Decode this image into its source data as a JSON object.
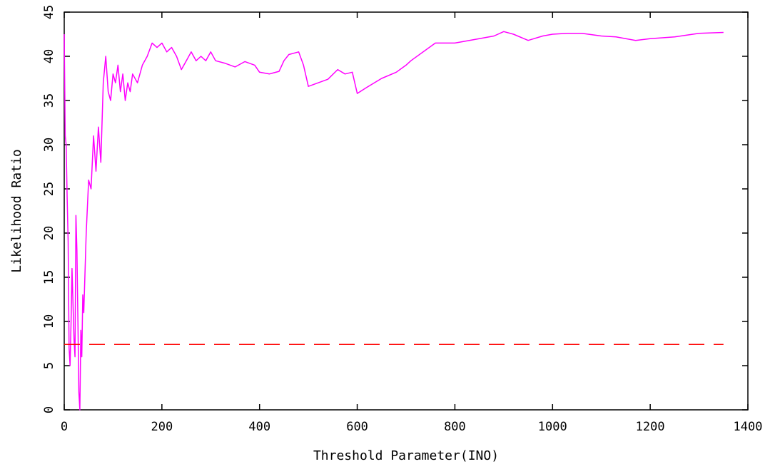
{
  "chart_data": {
    "type": "line",
    "title": "",
    "xlabel": "Threshold Parameter(INO)",
    "ylabel": "Likelihood Ratio",
    "xlim": [
      0,
      1400
    ],
    "ylim": [
      0,
      45
    ],
    "xticks": [
      0,
      200,
      400,
      600,
      800,
      1000,
      1200,
      1400
    ],
    "yticks": [
      0,
      5,
      10,
      15,
      20,
      25,
      30,
      35,
      40,
      45
    ],
    "grid": false,
    "legend": "none",
    "series": [
      {
        "color": "#ff00ff",
        "style": "solid",
        "x": [
          0,
          2,
          4,
          6,
          8,
          10,
          12,
          14,
          16,
          18,
          20,
          22,
          24,
          26,
          28,
          30,
          32,
          34,
          36,
          38,
          40,
          45,
          50,
          55,
          60,
          65,
          70,
          75,
          80,
          85,
          90,
          95,
          100,
          105,
          110,
          115,
          120,
          125,
          130,
          135,
          140,
          150,
          160,
          170,
          180,
          190,
          200,
          210,
          220,
          230,
          240,
          250,
          260,
          270,
          280,
          290,
          300,
          310,
          330,
          350,
          370,
          390,
          400,
          420,
          440,
          450,
          460,
          480,
          490,
          500,
          520,
          540,
          560,
          575,
          590,
          600,
          620,
          650,
          680,
          700,
          710,
          760,
          800,
          850,
          880,
          900,
          920,
          950,
          980,
          1000,
          1030,
          1060,
          1100,
          1130,
          1170,
          1200,
          1250,
          1300,
          1350
        ],
        "y": [
          42.5,
          31,
          30,
          24,
          19,
          7,
          5,
          10,
          16,
          12,
          8,
          6,
          22,
          18,
          10,
          2,
          0,
          9,
          6,
          13,
          11,
          20,
          26,
          25,
          31,
          27,
          32,
          28,
          37,
          40,
          36,
          35,
          38,
          37,
          39,
          36,
          38,
          35,
          37,
          36,
          38,
          37,
          39,
          40,
          41.5,
          41,
          41.5,
          40.5,
          41,
          40,
          38.5,
          39.5,
          40.5,
          39.5,
          40,
          39.5,
          40.5,
          39.5,
          39.2,
          38.8,
          39.4,
          39,
          38.2,
          38,
          38.3,
          39.5,
          40.2,
          40.5,
          39,
          36.6,
          37,
          37.4,
          38.5,
          38,
          38.2,
          35.8,
          36.5,
          37.5,
          38.2,
          39,
          39.5,
          41.5,
          41.5,
          42,
          42.3,
          42.8,
          42.5,
          41.8,
          42.3,
          42.5,
          42.6,
          42.6,
          42.3,
          42.2,
          41.8,
          42,
          42.2,
          42.6,
          42.7
        ]
      },
      {
        "color": "#ff0000",
        "style": "dashed",
        "x": [
          0,
          1350
        ],
        "y": [
          7.4,
          7.4
        ]
      }
    ]
  }
}
